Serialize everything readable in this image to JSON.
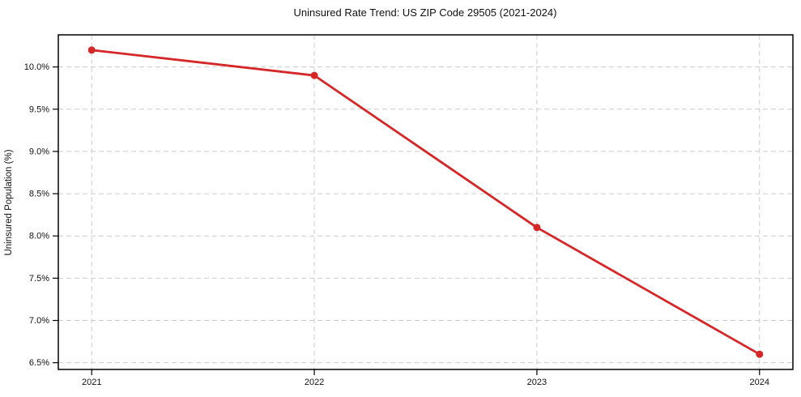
{
  "chart_data": {
    "type": "line",
    "title": "Uninsured Rate Trend: US ZIP Code 29505 (2021-2024)",
    "xlabel": "",
    "ylabel": "Uninsured Population (%)",
    "x": [
      2021,
      2022,
      2023,
      2024
    ],
    "x_tick_labels": [
      "2021",
      "2022",
      "2023",
      "2024"
    ],
    "series": [
      {
        "name": "Uninsured Population (%)",
        "values": [
          10.2,
          9.9,
          8.1,
          6.6
        ]
      }
    ],
    "y_ticks": [
      6.5,
      7.0,
      7.5,
      8.0,
      8.5,
      9.0,
      9.5,
      10.0
    ],
    "y_tick_labels": [
      "6.5%",
      "7.0%",
      "7.5%",
      "8.0%",
      "8.5%",
      "9.0%",
      "9.5%",
      "10.0%"
    ],
    "xlim": [
      2020.85,
      2024.15
    ],
    "ylim": [
      6.42,
      10.38
    ],
    "grid": true,
    "legend_position": "none",
    "colors": {
      "line": "#d62728",
      "marker": "#d62728",
      "grid": "#cccccc",
      "spine": "#000000",
      "tick": "#000000",
      "background": "#ffffff"
    },
    "marker": "circle",
    "marker_radius": 4.5
  }
}
